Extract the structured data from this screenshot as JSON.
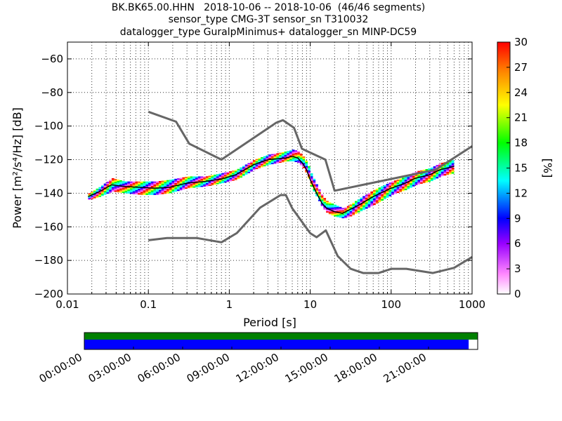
{
  "header": {
    "line1": "BK.BK65.00.HHN   2018-10-06 -- 2018-10-06  (46/46 segments)",
    "line2": "sensor_type CMG-3T sensor_sn T310032",
    "line3": "datalogger_type GuralpMinimus+ datalogger_sn MINP-DC59"
  },
  "chart_data": {
    "type": "heatmap",
    "xlabel": "Period [s]",
    "ylabel": "Power [m²/s⁴/Hz] [dB]",
    "xscale": "log",
    "xlim": [
      0.01,
      1000
    ],
    "ylim": [
      -200,
      -50
    ],
    "x_ticks": [
      "0.01",
      "0.1",
      "1",
      "10",
      "100",
      "1000"
    ],
    "y_ticks": [
      -60,
      -80,
      -100,
      -120,
      -140,
      -160,
      -180,
      -200
    ],
    "colorbar": {
      "label": "[%]",
      "ticks": [
        0,
        3,
        6,
        9,
        12,
        15,
        18,
        21,
        24,
        27,
        30
      ],
      "range": [
        0,
        30
      ],
      "colormap": [
        "#ffffff",
        "#ff66ff",
        "#9900ff",
        "#0000ff",
        "#00ffff",
        "#00ff00",
        "#ffff00",
        "#ff8800",
        "#ff0000"
      ]
    },
    "noise_model_high": {
      "period": [
        0.1,
        0.22,
        0.32,
        0.8,
        3.8,
        4.6,
        6.3,
        7.9,
        15.4,
        20,
        354.8,
        1000
      ],
      "db": [
        -91.5,
        -97.4,
        -110.5,
        -120,
        -98,
        -96.5,
        -101,
        -113.5,
        -120,
        -138.5,
        -126,
        -112
      ]
    },
    "noise_model_low": {
      "period": [
        0.1,
        0.17,
        0.4,
        0.8,
        1.24,
        2.4,
        4.3,
        5,
        6,
        10,
        12,
        15.6,
        21.9,
        31.6,
        45,
        70,
        101,
        154,
        328,
        600,
        1000
      ],
      "db": [
        -168,
        -166.7,
        -166.7,
        -169.2,
        -163.7,
        -148.6,
        -141.1,
        -141.1,
        -149,
        -163.8,
        -166.2,
        -162.1,
        -177.5,
        -185,
        -187.5,
        -187.5,
        -185,
        -185,
        -187.5,
        -184.4,
        -178
      ]
    },
    "mode": {
      "period": [
        0.018,
        0.025,
        0.035,
        0.05,
        0.08,
        0.12,
        0.18,
        0.3,
        0.5,
        0.8,
        1.2,
        2,
        3,
        4,
        5,
        6,
        7,
        8,
        9,
        10,
        12,
        14,
        16,
        20,
        25,
        30,
        40,
        60,
        100,
        150,
        200,
        300,
        400,
        600
      ],
      "db": [
        -142,
        -139,
        -135,
        -136,
        -136.5,
        -137,
        -136.5,
        -134,
        -133,
        -131.5,
        -129,
        -123,
        -120,
        -119.5,
        -119,
        -118,
        -119,
        -122,
        -126,
        -132,
        -140,
        -146,
        -149,
        -151,
        -152,
        -150,
        -147,
        -142,
        -137,
        -134,
        -131,
        -129,
        -126,
        -124
      ]
    },
    "band_top": [
      -140,
      -136,
      -131,
      -133,
      -133,
      -133,
      -132,
      -130,
      -130,
      -128,
      -126,
      -120,
      -117,
      -116,
      -115,
      -114,
      -115,
      -118,
      -122,
      -128,
      -136,
      -142,
      -145,
      -147,
      -149,
      -147,
      -143,
      -138,
      -133,
      -130,
      -127,
      -125,
      -122,
      -120
    ],
    "band_bottom": [
      -144,
      -142,
      -139,
      -140,
      -141,
      -141,
      -140,
      -137,
      -136,
      -134,
      -132,
      -126,
      -123,
      -122,
      -121,
      -121,
      -122,
      -125,
      -129,
      -136,
      -143,
      -149,
      -152,
      -154,
      -155,
      -154,
      -151,
      -147,
      -141,
      -138,
      -135,
      -133,
      -130,
      -128
    ],
    "band_colors": [
      "#ff0000",
      "#ff6600",
      "#ffff00",
      "#00ff00",
      "#00ffcc",
      "#00ffff",
      "#0000ff",
      "#9900ff",
      "#ff66ff"
    ]
  },
  "timeline": {
    "labels": [
      "00:00:00",
      "03:00:00",
      "06:00:00",
      "09:00:00",
      "12:00:00",
      "15:00:00",
      "18:00:00",
      "21:00:00"
    ],
    "data_coverage_color": "#008000",
    "segment_coverage_color": "#0000ff",
    "data_coverage_fraction": 1.0,
    "segment_coverage_fraction": 0.977
  }
}
